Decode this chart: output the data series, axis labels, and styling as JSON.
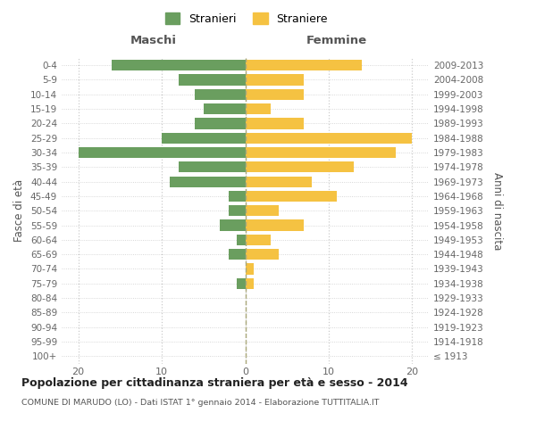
{
  "age_groups": [
    "100+",
    "95-99",
    "90-94",
    "85-89",
    "80-84",
    "75-79",
    "70-74",
    "65-69",
    "60-64",
    "55-59",
    "50-54",
    "45-49",
    "40-44",
    "35-39",
    "30-34",
    "25-29",
    "20-24",
    "15-19",
    "10-14",
    "5-9",
    "0-4"
  ],
  "birth_years": [
    "≤ 1913",
    "1914-1918",
    "1919-1923",
    "1924-1928",
    "1929-1933",
    "1934-1938",
    "1939-1943",
    "1944-1948",
    "1949-1953",
    "1954-1958",
    "1959-1963",
    "1964-1968",
    "1969-1973",
    "1974-1978",
    "1979-1983",
    "1984-1988",
    "1989-1993",
    "1994-1998",
    "1999-2003",
    "2004-2008",
    "2009-2013"
  ],
  "maschi": [
    0,
    0,
    0,
    0,
    0,
    1,
    0,
    2,
    1,
    3,
    2,
    2,
    9,
    8,
    20,
    10,
    6,
    5,
    6,
    8,
    16
  ],
  "femmine": [
    0,
    0,
    0,
    0,
    0,
    1,
    1,
    4,
    3,
    7,
    4,
    11,
    8,
    13,
    18,
    20,
    7,
    3,
    7,
    7,
    14
  ],
  "maschi_color": "#6a9e5f",
  "femmine_color": "#f5c242",
  "background_color": "#ffffff",
  "grid_color": "#cccccc",
  "title": "Popolazione per cittadinanza straniera per età e sesso - 2014",
  "subtitle": "COMUNE DI MARUDO (LO) - Dati ISTAT 1° gennaio 2014 - Elaborazione TUTTITALIA.IT",
  "xlabel_left": "Maschi",
  "xlabel_right": "Femmine",
  "ylabel_left": "Fasce di età",
  "ylabel_right": "Anni di nascita",
  "legend_maschi": "Stranieri",
  "legend_femmine": "Straniere",
  "xlim": 22,
  "bar_height": 0.75
}
